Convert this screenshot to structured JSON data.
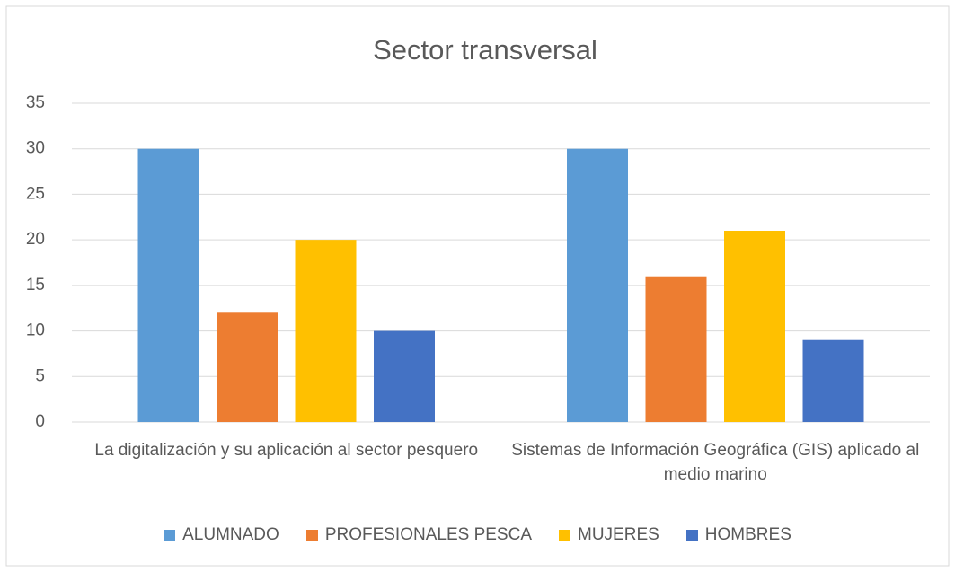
{
  "chart_data": {
    "type": "bar",
    "title": "Sector transversal",
    "categories": [
      "La digitalización y su aplicación al sector pesquero",
      "Sistemas de Información Geográfica (GIS) aplicado al medio marino"
    ],
    "series": [
      {
        "name": "ALUMNADO",
        "color": "#5b9bd5",
        "values": [
          30,
          30
        ]
      },
      {
        "name": "PROFESIONALES PESCA",
        "color": "#ed7d31",
        "values": [
          12,
          16
        ]
      },
      {
        "name": "MUJERES",
        "color": "#ffc000",
        "values": [
          20,
          21
        ]
      },
      {
        "name": "HOMBRES",
        "color": "#4472c4",
        "values": [
          10,
          9
        ]
      }
    ],
    "ylim": [
      0,
      35
    ],
    "yticks": [
      0,
      5,
      10,
      15,
      20,
      25,
      30,
      35
    ],
    "grid": true,
    "legend": "bottom"
  }
}
